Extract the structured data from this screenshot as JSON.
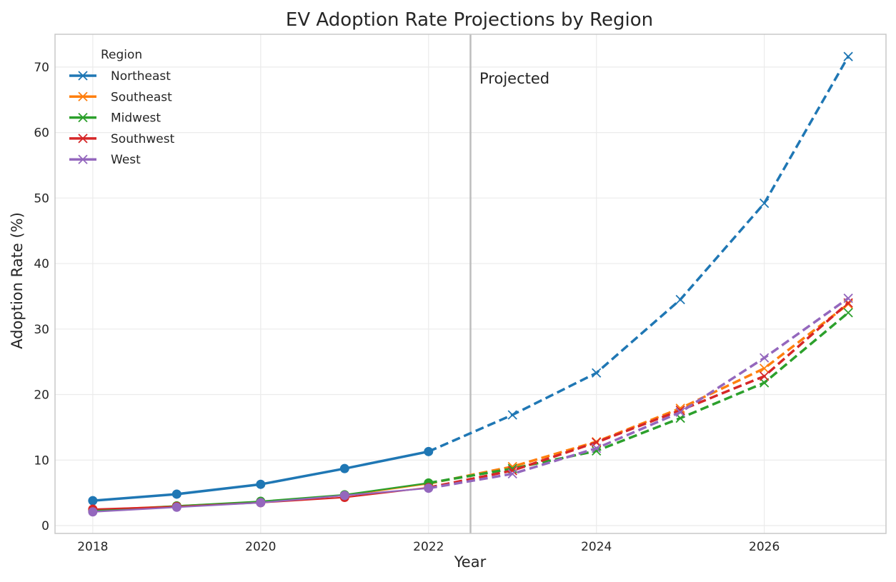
{
  "chart_data": {
    "type": "line",
    "title": "EV Adoption Rate Projections by Region",
    "xlabel": "Year",
    "ylabel": "Adoption Rate (%)",
    "xlim": [
      2017.55,
      2027.45
    ],
    "ylim": [
      -1.2,
      75.0
    ],
    "xticks": [
      2018,
      2020,
      2022,
      2024,
      2026
    ],
    "yticks": [
      0,
      10,
      20,
      30,
      40,
      50,
      60,
      70
    ],
    "grid": true,
    "legend": {
      "title": "Region",
      "placement": "top-left"
    },
    "projection_boundary": 2022.5,
    "annotation": "Projected",
    "historical_marker": "circle",
    "projected_marker": "x",
    "historical_years": [
      2018,
      2019,
      2020,
      2021,
      2022
    ],
    "projected_years": [
      2022,
      2023,
      2024,
      2025,
      2026,
      2027
    ],
    "series": [
      {
        "name": "Northeast",
        "color": "#1f77b4",
        "historical": [
          3.8,
          4.8,
          6.3,
          8.7,
          11.3
        ],
        "projected": [
          11.3,
          16.9,
          23.3,
          34.5,
          49.2,
          71.6
        ]
      },
      {
        "name": "Southeast",
        "color": "#ff7f0e",
        "historical": [
          2.4,
          3.0,
          3.6,
          4.6,
          6.4
        ],
        "projected": [
          6.4,
          9.0,
          12.8,
          17.9,
          24.0,
          33.8
        ]
      },
      {
        "name": "Midwest",
        "color": "#2ca02c",
        "historical": [
          2.3,
          3.0,
          3.7,
          4.7,
          6.5
        ],
        "projected": [
          6.5,
          8.7,
          11.4,
          16.4,
          21.8,
          32.5
        ]
      },
      {
        "name": "Southwest",
        "color": "#d62728",
        "historical": [
          2.5,
          2.9,
          3.5,
          4.3,
          5.8
        ],
        "projected": [
          5.8,
          8.4,
          12.7,
          17.6,
          22.8,
          34.0
        ]
      },
      {
        "name": "West",
        "color": "#9467bd",
        "historical": [
          2.1,
          2.8,
          3.5,
          4.6,
          5.7
        ],
        "projected": [
          5.7,
          7.9,
          11.8,
          17.3,
          25.6,
          34.7
        ]
      }
    ]
  }
}
